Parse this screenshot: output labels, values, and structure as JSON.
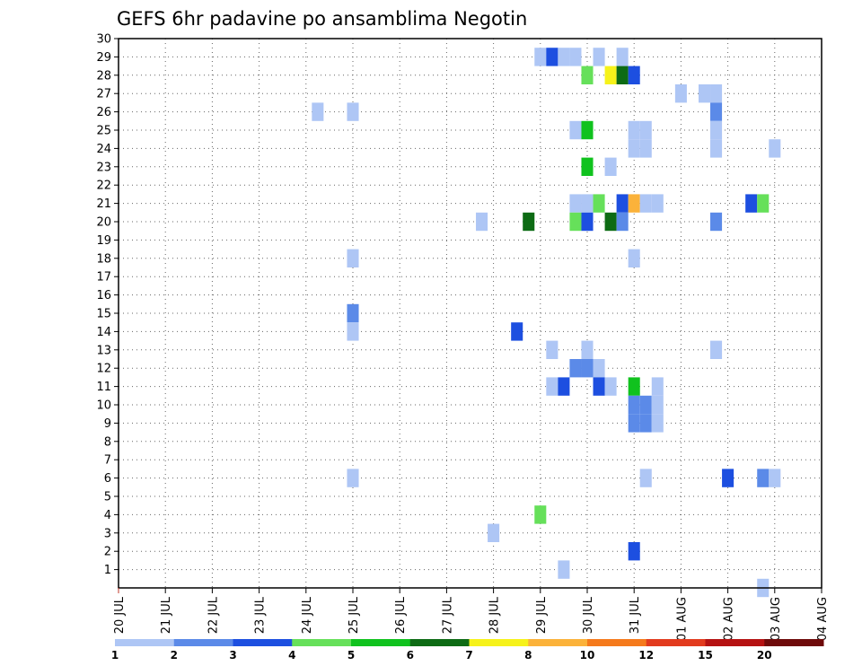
{
  "chart_data": {
    "type": "heatmap",
    "title": "GEFS 6hr padavine po ansamblima Negotin",
    "xlabel": "",
    "ylabel": "",
    "x_ticks": [
      "20 JUL",
      "21 JUL",
      "22 JUL",
      "23 JUL",
      "24 JUL",
      "25 JUL",
      "26 JUL",
      "27 JUL",
      "28 JUL",
      "29 JUL",
      "30 JUL",
      "31 JUL",
      "01 AUG",
      "02 AUG",
      "03 AUG",
      "04 AUG"
    ],
    "xlim_days": [
      0,
      15
    ],
    "y_ticks": [
      1,
      2,
      3,
      4,
      5,
      6,
      7,
      8,
      9,
      10,
      11,
      12,
      13,
      14,
      15,
      16,
      17,
      18,
      19,
      20,
      21,
      22,
      23,
      24,
      25,
      26,
      27,
      28,
      29,
      30
    ],
    "ylim": [
      0,
      30
    ],
    "grid": true,
    "colorbar": {
      "labels": [
        "1",
        "2",
        "3",
        "4",
        "5",
        "6",
        "7",
        "8",
        "10",
        "12",
        "15",
        "20"
      ],
      "colors": [
        "#aec6f5",
        "#5b8ae8",
        "#1d4fe0",
        "#66e05a",
        "#10c21e",
        "#0d6b14",
        "#f6f21a",
        "#fbb23a",
        "#f57a1c",
        "#e23b1e",
        "#b51212",
        "#6e0a0a"
      ]
    },
    "cells": [
      {
        "x": "29 JUL 00",
        "member": 29,
        "level": 1
      },
      {
        "x": "29 JUL 06",
        "member": 29,
        "level": 3
      },
      {
        "x": "29 JUL 12",
        "member": 29,
        "level": 1
      },
      {
        "x": "29 JUL 18",
        "member": 29,
        "level": 1
      },
      {
        "x": "30 JUL 06",
        "member": 29,
        "level": 1
      },
      {
        "x": "30 JUL 18",
        "member": 29,
        "level": 1
      },
      {
        "x": "30 JUL 00",
        "member": 28,
        "level": 4
      },
      {
        "x": "30 JUL 12",
        "member": 28,
        "level": 7
      },
      {
        "x": "30 JUL 18",
        "member": 28,
        "level": 6
      },
      {
        "x": "31 JUL 00",
        "member": 28,
        "level": 3
      },
      {
        "x": "01 AUG 00",
        "member": 27,
        "level": 1
      },
      {
        "x": "01 AUG 12",
        "member": 27,
        "level": 1
      },
      {
        "x": "01 AUG 18",
        "member": 27,
        "level": 1
      },
      {
        "x": "24 JUL 06",
        "member": 26,
        "level": 1
      },
      {
        "x": "25 JUL 00",
        "member": 26,
        "level": 1
      },
      {
        "x": "01 AUG 18",
        "member": 26,
        "level": 2
      },
      {
        "x": "29 JUL 18",
        "member": 25,
        "level": 1
      },
      {
        "x": "30 JUL 00",
        "member": 25,
        "level": 5
      },
      {
        "x": "31 JUL 00",
        "member": 25,
        "level": 1
      },
      {
        "x": "31 JUL 06",
        "member": 25,
        "level": 1
      },
      {
        "x": "01 AUG 18",
        "member": 25,
        "level": 1
      },
      {
        "x": "31 JUL 00",
        "member": 24,
        "level": 1
      },
      {
        "x": "31 JUL 06",
        "member": 24,
        "level": 1
      },
      {
        "x": "01 AUG 18",
        "member": 24,
        "level": 1
      },
      {
        "x": "03 AUG 00",
        "member": 24,
        "level": 1
      },
      {
        "x": "30 JUL 00",
        "member": 23,
        "level": 5
      },
      {
        "x": "30 JUL 12",
        "member": 23,
        "level": 1
      },
      {
        "x": "29 JUL 18",
        "member": 21,
        "level": 1
      },
      {
        "x": "30 JUL 00",
        "member": 21,
        "level": 1
      },
      {
        "x": "30 JUL 06",
        "member": 21,
        "level": 4
      },
      {
        "x": "30 JUL 18",
        "member": 21,
        "level": 3
      },
      {
        "x": "31 JUL 00",
        "member": 21,
        "level": 8
      },
      {
        "x": "31 JUL 06",
        "member": 21,
        "level": 1
      },
      {
        "x": "31 JUL 12",
        "member": 21,
        "level": 1
      },
      {
        "x": "02 AUG 12",
        "member": 21,
        "level": 3
      },
      {
        "x": "02 AUG 18",
        "member": 21,
        "level": 4
      },
      {
        "x": "27 JUL 18",
        "member": 20,
        "level": 1
      },
      {
        "x": "28 JUL 18",
        "member": 20,
        "level": 6
      },
      {
        "x": "29 JUL 18",
        "member": 20,
        "level": 4
      },
      {
        "x": "30 JUL 00",
        "member": 20,
        "level": 3
      },
      {
        "x": "30 JUL 12",
        "member": 20,
        "level": 6
      },
      {
        "x": "30 JUL 18",
        "member": 20,
        "level": 2
      },
      {
        "x": "01 AUG 18",
        "member": 20,
        "level": 2
      },
      {
        "x": "25 JUL 00",
        "member": 18,
        "level": 1
      },
      {
        "x": "31 JUL 00",
        "member": 18,
        "level": 1
      },
      {
        "x": "25 JUL 00",
        "member": 15,
        "level": 2
      },
      {
        "x": "25 JUL 00",
        "member": 14,
        "level": 1
      },
      {
        "x": "28 JUL 12",
        "member": 14,
        "level": 3
      },
      {
        "x": "29 JUL 06",
        "member": 13,
        "level": 1
      },
      {
        "x": "30 JUL 00",
        "member": 13,
        "level": 1
      },
      {
        "x": "01 AUG 18",
        "member": 13,
        "level": 1
      },
      {
        "x": "29 JUL 18",
        "member": 12,
        "level": 2
      },
      {
        "x": "30 JUL 00",
        "member": 12,
        "level": 2
      },
      {
        "x": "30 JUL 06",
        "member": 12,
        "level": 1
      },
      {
        "x": "29 JUL 06",
        "member": 11,
        "level": 1
      },
      {
        "x": "29 JUL 12",
        "member": 11,
        "level": 3
      },
      {
        "x": "30 JUL 06",
        "member": 11,
        "level": 3
      },
      {
        "x": "30 JUL 12",
        "member": 11,
        "level": 1
      },
      {
        "x": "31 JUL 00",
        "member": 11,
        "level": 5
      },
      {
        "x": "31 JUL 12",
        "member": 11,
        "level": 1
      },
      {
        "x": "31 JUL 00",
        "member": 10,
        "level": 2
      },
      {
        "x": "31 JUL 06",
        "member": 10,
        "level": 2
      },
      {
        "x": "31 JUL 12",
        "member": 10,
        "level": 1
      },
      {
        "x": "31 JUL 00",
        "member": 9,
        "level": 2
      },
      {
        "x": "31 JUL 06",
        "member": 9,
        "level": 2
      },
      {
        "x": "31 JUL 12",
        "member": 9,
        "level": 1
      },
      {
        "x": "25 JUL 00",
        "member": 6,
        "level": 1
      },
      {
        "x": "31 JUL 06",
        "member": 6,
        "level": 1
      },
      {
        "x": "02 AUG 00",
        "member": 6,
        "level": 3
      },
      {
        "x": "02 AUG 18",
        "member": 6,
        "level": 2
      },
      {
        "x": "03 AUG 00",
        "member": 6,
        "level": 1
      },
      {
        "x": "29 JUL 00",
        "member": 4,
        "level": 4
      },
      {
        "x": "28 JUL 00",
        "member": 3,
        "level": 1
      },
      {
        "x": "31 JUL 00",
        "member": 2,
        "level": 3
      },
      {
        "x": "29 JUL 12",
        "member": 1,
        "level": 1
      },
      {
        "x": "02 AUG 18",
        "member": 0,
        "level": 1
      }
    ]
  }
}
